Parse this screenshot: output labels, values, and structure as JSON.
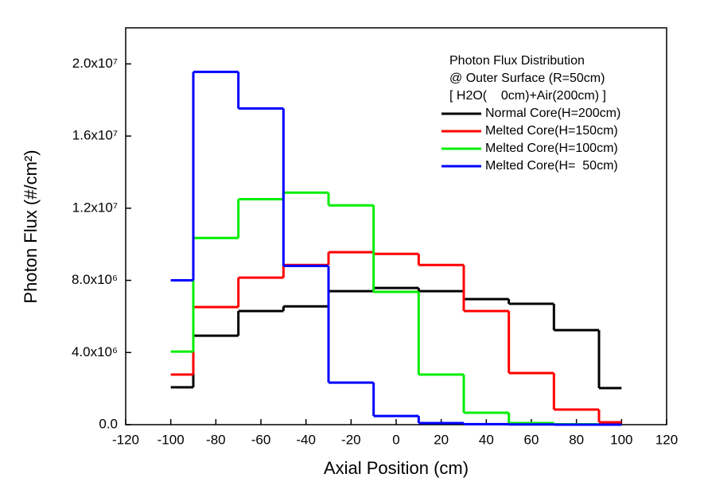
{
  "chart_data": {
    "type": "step",
    "x_label": "Axial Position (cm)",
    "y_label": "Photon Flux (#/cm²)",
    "legend_title": [
      "Photon Flux Distribution",
      "@ Outer Surface (R=50cm)",
      "[ H2O(    0cm)+Air(200cm) ]"
    ],
    "legend_position": "upper right",
    "x": [
      -100,
      -80,
      -60,
      -40,
      -20,
      0,
      20,
      40,
      60,
      80,
      100
    ],
    "series": [
      {
        "name": "Normal Core(H=200cm)",
        "color": "#000000",
        "values": [
          2070000,
          4930000,
          6300000,
          6560000,
          7400000,
          7580000,
          7400000,
          6960000,
          6700000,
          5240000,
          2030000
        ]
      },
      {
        "name": "Melted Core(H=150cm)",
        "color": "#ff0000",
        "values": [
          2780000,
          6520000,
          8150000,
          8850000,
          9560000,
          9470000,
          8850000,
          6300000,
          2860000,
          840000,
          130000
        ]
      },
      {
        "name": "Melted Core(H=100cm)",
        "color": "#00ee00",
        "values": [
          4050000,
          10350000,
          12500000,
          12860000,
          12160000,
          7360000,
          2780000,
          660000,
          90000,
          20000,
          0
        ]
      },
      {
        "name": "Melted Core(H=  50cm)",
        "color": "#0000ff",
        "values": [
          8000000,
          19560000,
          17530000,
          8800000,
          2330000,
          480000,
          90000,
          30000,
          10000,
          0,
          0
        ]
      }
    ],
    "xlim": [
      -120,
      120
    ],
    "xticks": [
      -120,
      -100,
      -80,
      -60,
      -40,
      -20,
      0,
      20,
      40,
      60,
      80,
      100,
      120
    ],
    "ylim": [
      0,
      22000000
    ],
    "yticks": [
      {
        "value": 0,
        "label": "0.0"
      },
      {
        "value": 4000000,
        "label": "4.0x10⁶"
      },
      {
        "value": 8000000,
        "label": "8.0x10⁶"
      },
      {
        "value": 12000000,
        "label": "1.2x10⁷"
      },
      {
        "value": 16000000,
        "label": "1.6x10⁷"
      },
      {
        "value": 20000000,
        "label": "2.0x10⁷"
      }
    ],
    "grid": false
  }
}
